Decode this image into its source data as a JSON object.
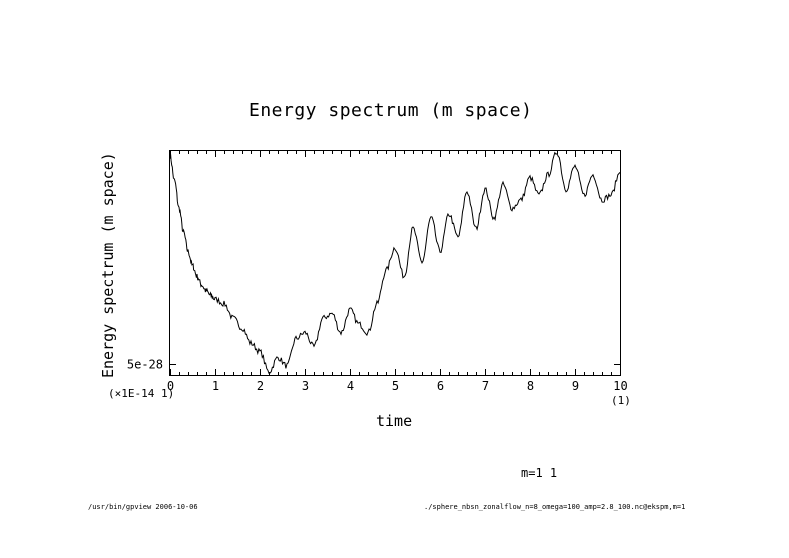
{
  "chart_data": {
    "type": "line",
    "title": "Energy spectrum (m space)",
    "xlabel": "time",
    "ylabel": "Energy spectrum (m space)",
    "x_scale_label": "(1)",
    "y_scale_label": "(×1E-14 1)",
    "xlim": [
      0,
      10
    ],
    "x_ticks": [
      "0",
      "1",
      "2",
      "3",
      "4",
      "5",
      "6",
      "7",
      "8",
      "9",
      "10"
    ],
    "y_ticks": [
      {
        "value": 5e-28,
        "label": "5e-28"
      }
    ],
    "yscale": "log",
    "ylim_relative_note": "",
    "grid": false,
    "series": [
      {
        "name": "m=1 1",
        "x": [
          0.0,
          0.1,
          0.2,
          0.3,
          0.4,
          0.5,
          0.6,
          0.7,
          0.8,
          0.9,
          1.0,
          1.2,
          1.4,
          1.6,
          1.8,
          2.0,
          2.2,
          2.4,
          2.6,
          2.8,
          3.0,
          3.2,
          3.4,
          3.6,
          3.8,
          4.0,
          4.2,
          4.4,
          4.6,
          4.8,
          5.0,
          5.2,
          5.4,
          5.6,
          5.8,
          6.0,
          6.2,
          6.4,
          6.6,
          6.8,
          7.0,
          7.2,
          7.4,
          7.6,
          7.8,
          8.0,
          8.2,
          8.4,
          8.6,
          8.8,
          9.0,
          9.2,
          9.4,
          9.6,
          9.8,
          10.0
        ],
        "y": [
          100,
          30,
          8,
          2.5,
          1.0,
          0.5,
          0.3,
          0.2,
          0.15,
          0.12,
          0.1,
          0.08,
          0.04,
          0.025,
          0.012,
          0.008,
          0.003,
          0.006,
          0.004,
          0.015,
          0.02,
          0.01,
          0.04,
          0.05,
          0.02,
          0.06,
          0.03,
          0.02,
          0.08,
          0.4,
          1.2,
          0.3,
          3.0,
          0.6,
          5.0,
          1.0,
          6.0,
          2.0,
          18,
          3.0,
          20,
          5.0,
          25,
          8.0,
          12,
          35,
          15,
          40,
          120,
          20,
          60,
          15,
          40,
          12,
          15,
          45
        ]
      }
    ],
    "legend": "m=1 1"
  },
  "footer": {
    "left": "/usr/bin/gpview  2006-10-06",
    "right": "./sphere_nbsn_zonalflow_n=8_omega=100_amp=2.8_100.nc@ekspm,m=1"
  }
}
